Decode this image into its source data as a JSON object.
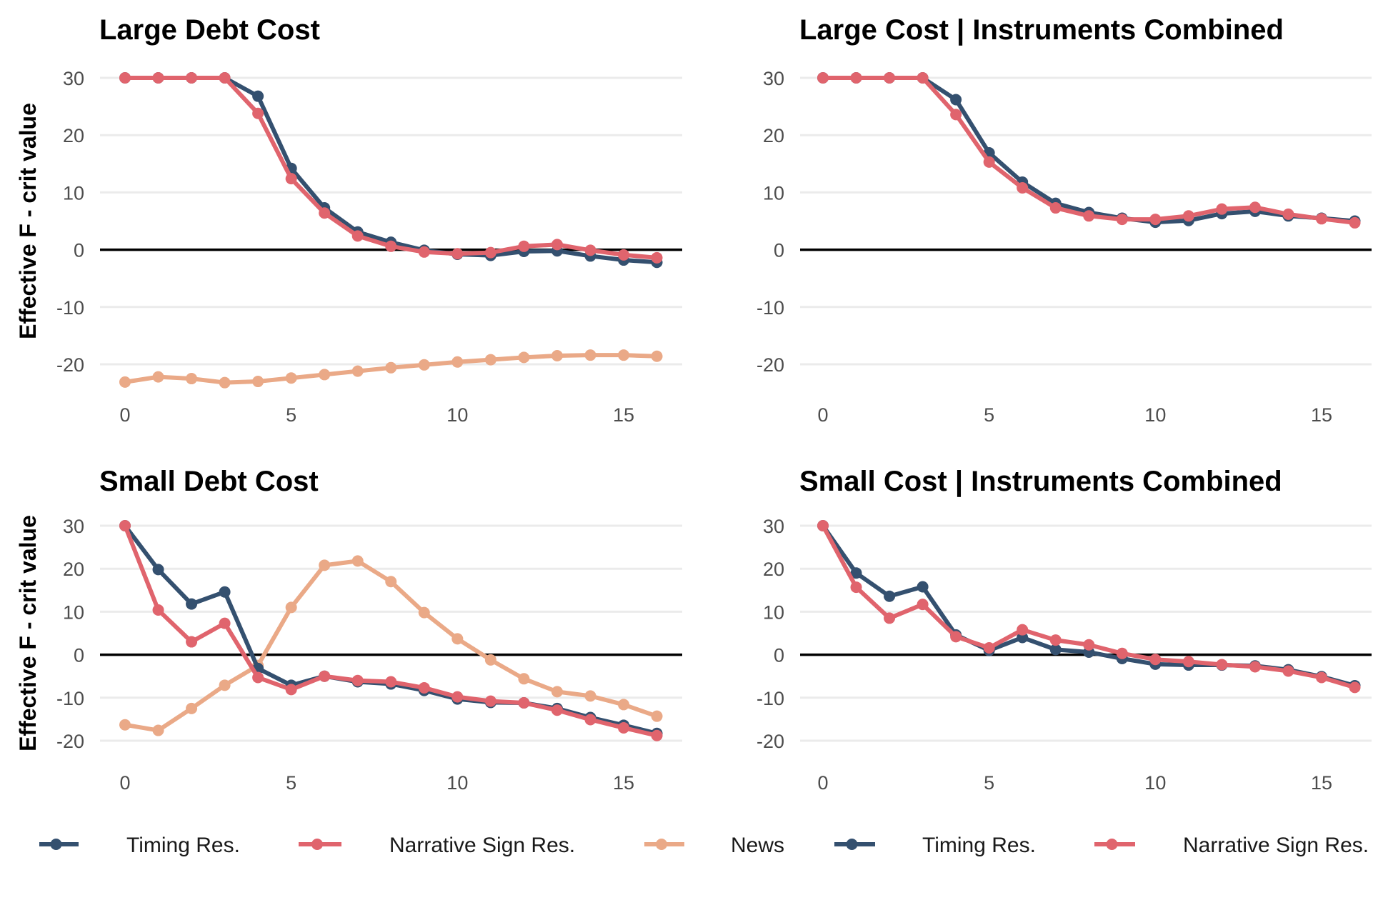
{
  "colors": {
    "timing": "#34506f",
    "narrative": "#e0646d",
    "news": "#eaa987"
  },
  "y_axis_label": "Effective F - crit value",
  "legend": [
    {
      "label": "Timing Res.",
      "color": "#34506f"
    },
    {
      "label": "Narrative Sign Res.",
      "color": "#e0646d"
    },
    {
      "label": "News",
      "color": "#eaa987"
    },
    {
      "label": "Timing Res.",
      "color": "#34506f"
    },
    {
      "label": "Narrative Sign Res.",
      "color": "#e0646d"
    }
  ],
  "chart_data": [
    {
      "type": "line",
      "title": "Large Debt Cost",
      "xlabel": "",
      "ylabel": "Effective F - crit value",
      "x": [
        0,
        1,
        2,
        3,
        4,
        5,
        6,
        7,
        8,
        9,
        10,
        11,
        12,
        13,
        14,
        15,
        16
      ],
      "xticks": [
        0,
        5,
        10,
        15
      ],
      "yticks": [
        30,
        20,
        10,
        0,
        -10,
        -20
      ],
      "xlim": [
        -0.6,
        16.6
      ],
      "ylim": [
        -25.5,
        32.5
      ],
      "hline": 0,
      "series": [
        {
          "name": "News",
          "color": "#eaa987",
          "values": [
            -23.1,
            -22.2,
            -22.5,
            -23.2,
            -23.0,
            -22.4,
            -21.8,
            -21.2,
            -20.6,
            -20.1,
            -19.6,
            -19.2,
            -18.8,
            -18.5,
            -18.4,
            -18.4,
            -18.6
          ]
        },
        {
          "name": "Timing Res.",
          "color": "#34506f",
          "values": [
            30,
            30,
            30,
            30,
            26.8,
            14.2,
            7.3,
            3.1,
            1.3,
            -0.1,
            -0.8,
            -1.0,
            -0.3,
            -0.2,
            -1.1,
            -1.8,
            -2.2
          ]
        },
        {
          "name": "Narrative Sign Res.",
          "color": "#e0646d",
          "values": [
            30,
            30,
            30,
            30,
            23.8,
            12.4,
            6.4,
            2.4,
            0.6,
            -0.4,
            -0.7,
            -0.5,
            0.6,
            0.9,
            -0.1,
            -0.9,
            -1.4
          ]
        }
      ]
    },
    {
      "type": "line",
      "title": "Large Cost | Instruments Combined",
      "xlabel": "",
      "ylabel": "",
      "x": [
        0,
        1,
        2,
        3,
        4,
        5,
        6,
        7,
        8,
        9,
        10,
        11,
        12,
        13,
        14,
        15,
        16
      ],
      "xticks": [
        0,
        5,
        10,
        15
      ],
      "yticks": [
        30,
        20,
        10,
        0,
        -10,
        -20
      ],
      "xlim": [
        -0.6,
        16.6
      ],
      "ylim": [
        -25.5,
        32.5
      ],
      "hline": 0,
      "series": [
        {
          "name": "Timing Res.",
          "color": "#34506f",
          "values": [
            30,
            30,
            30,
            30,
            26.2,
            16.9,
            11.8,
            8.1,
            6.5,
            5.5,
            4.8,
            5.1,
            6.3,
            6.7,
            5.9,
            5.5,
            5.0
          ]
        },
        {
          "name": "Narrative Sign Res.",
          "color": "#e0646d",
          "values": [
            30,
            30,
            30,
            30,
            23.6,
            15.3,
            10.8,
            7.3,
            5.9,
            5.3,
            5.3,
            5.9,
            7.1,
            7.4,
            6.2,
            5.4,
            4.7
          ]
        }
      ]
    },
    {
      "type": "line",
      "title": "Small Debt Cost",
      "xlabel": "",
      "ylabel": "Effective F - crit value",
      "x": [
        0,
        1,
        2,
        3,
        4,
        5,
        6,
        7,
        8,
        9,
        10,
        11,
        12,
        13,
        14,
        15,
        16
      ],
      "xticks": [
        0,
        5,
        10,
        15
      ],
      "yticks": [
        30,
        20,
        10,
        0,
        -10,
        -20
      ],
      "xlim": [
        -0.6,
        16.6
      ],
      "ylim": [
        -24.5,
        32.5
      ],
      "hline": 0,
      "series": [
        {
          "name": "News",
          "color": "#eaa987",
          "values": [
            -16.3,
            -17.6,
            -12.5,
            -7.1,
            -2.5,
            11.0,
            20.8,
            21.8,
            17.0,
            9.8,
            3.7,
            -1.2,
            -5.6,
            -8.6,
            -9.6,
            -11.6,
            -14.3
          ]
        },
        {
          "name": "Timing Res.",
          "color": "#34506f",
          "values": [
            30,
            19.8,
            11.8,
            14.6,
            -3.2,
            -7.1,
            -5.0,
            -6.3,
            -6.8,
            -8.3,
            -10.3,
            -11.1,
            -11.2,
            -12.5,
            -14.6,
            -16.4,
            -18.3
          ]
        },
        {
          "name": "Narrative Sign Res.",
          "color": "#e0646d",
          "values": [
            30,
            10.4,
            3.0,
            7.3,
            -5.3,
            -8.1,
            -5.0,
            -6.0,
            -6.3,
            -7.7,
            -9.8,
            -10.8,
            -11.2,
            -12.9,
            -15.1,
            -17.0,
            -18.8
          ]
        }
      ]
    },
    {
      "type": "line",
      "title": "Small Cost | Instruments Combined",
      "xlabel": "",
      "ylabel": "",
      "x": [
        0,
        1,
        2,
        3,
        4,
        5,
        6,
        7,
        8,
        9,
        10,
        11,
        12,
        13,
        14,
        15,
        16
      ],
      "xticks": [
        0,
        5,
        10,
        15
      ],
      "yticks": [
        30,
        20,
        10,
        0,
        -10,
        -20
      ],
      "xlim": [
        -0.6,
        16.6
      ],
      "ylim": [
        -24.5,
        32.5
      ],
      "hline": 0,
      "series": [
        {
          "name": "Timing Res.",
          "color": "#34506f",
          "values": [
            30,
            19.0,
            13.6,
            15.8,
            4.6,
            1.0,
            4.0,
            1.2,
            0.6,
            -0.9,
            -2.2,
            -2.4,
            -2.4,
            -2.6,
            -3.5,
            -5.1,
            -7.2
          ]
        },
        {
          "name": "Narrative Sign Res.",
          "color": "#e0646d",
          "values": [
            30,
            15.7,
            8.5,
            11.7,
            4.2,
            1.6,
            5.8,
            3.4,
            2.3,
            0.3,
            -1.1,
            -1.6,
            -2.3,
            -2.8,
            -3.8,
            -5.3,
            -7.6
          ]
        }
      ]
    }
  ]
}
